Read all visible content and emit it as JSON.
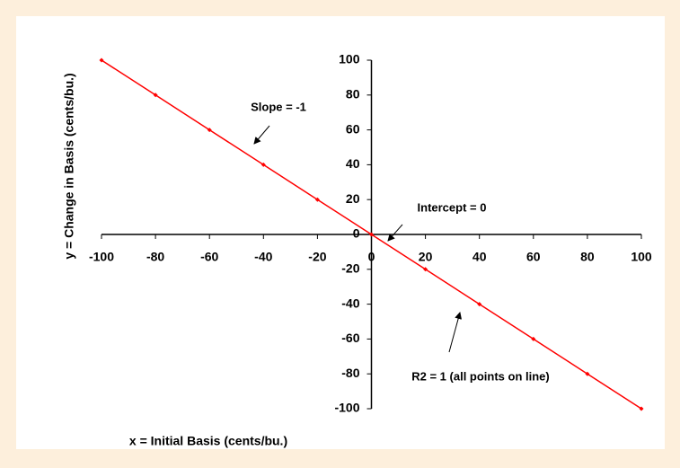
{
  "chart_data": {
    "type": "line",
    "x_label": "x = Initial Basis (cents/bu.)",
    "y_label": "y = Change in Basis (cents/bu.)",
    "x": [
      -100,
      -80,
      -60,
      -40,
      -20,
      0,
      20,
      40,
      60,
      80,
      100
    ],
    "values": [
      100,
      80,
      60,
      40,
      20,
      0,
      -20,
      -40,
      -60,
      -80,
      -100
    ],
    "color": "#ff0000",
    "xlim": [
      -100,
      100
    ],
    "ylim": [
      -100,
      100
    ],
    "xticks": [
      -100,
      -80,
      -60,
      -40,
      -20,
      0,
      20,
      40,
      60,
      80,
      100
    ],
    "yticks": [
      -100,
      -80,
      -60,
      -40,
      -20,
      0,
      20,
      40,
      60,
      80,
      100
    ],
    "annotations": [
      "Slope = -1",
      "Intercept = 0",
      "R2 = 1 (all points on line)"
    ]
  }
}
